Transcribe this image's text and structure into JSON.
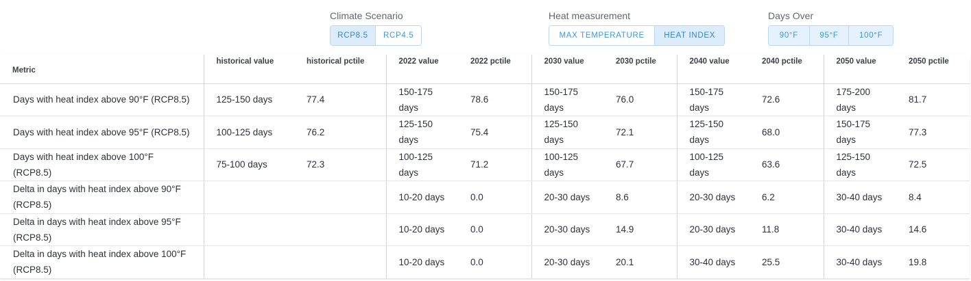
{
  "filters": {
    "climate_scenario": {
      "label": "Climate Scenario",
      "options": [
        "RCP8.5",
        "RCP4.5"
      ],
      "selected": "RCP8.5"
    },
    "heat_measurement": {
      "label": "Heat measurement",
      "options": [
        "MAX TEMPERATURE",
        "HEAT INDEX"
      ],
      "selected": "HEAT INDEX"
    },
    "days_over": {
      "label": "Days Over",
      "options": [
        "90°F",
        "95°F",
        "100°F"
      ]
    }
  },
  "table": {
    "headers": [
      "Metric",
      "historical value",
      "historical pctile",
      "2022 value",
      "2022 pctile",
      "2030 value",
      "2030 pctile",
      "2040 value",
      "2040 pctile",
      "2050 value",
      "2050 pctile"
    ],
    "rows": [
      [
        "Days with heat index above 90°F (RCP8.5)",
        "125-150 days",
        "77.4",
        "150-175 days",
        "78.6",
        "150-175 days",
        "76.0",
        "150-175 days",
        "72.6",
        "175-200 days",
        "81.7"
      ],
      [
        "Days with heat index above 95°F (RCP8.5)",
        "100-125 days",
        "76.2",
        "125-150 days",
        "75.4",
        "125-150 days",
        "72.1",
        "125-150 days",
        "68.0",
        "150-175 days",
        "77.3"
      ],
      [
        "Days with heat index above 100°F (RCP8.5)",
        "75-100 days",
        "72.3",
        "100-125 days",
        "71.2",
        "100-125 days",
        "67.7",
        "100-125 days",
        "63.6",
        "125-150 days",
        "72.5"
      ],
      [
        "Delta in days with heat index above 90°F (RCP8.5)",
        "",
        "",
        "10-20 days",
        "0.0",
        "20-30 days",
        "8.6",
        "20-30 days",
        "6.2",
        "30-40 days",
        "8.4"
      ],
      [
        "Delta in days with heat index above 95°F (RCP8.5)",
        "",
        "",
        "10-20 days",
        "0.0",
        "20-30 days",
        "14.9",
        "20-30 days",
        "11.8",
        "30-40 days",
        "14.6"
      ],
      [
        "Delta in days with heat index above 100°F (RCP8.5)",
        "",
        "",
        "10-20 days",
        "0.0",
        "20-30 days",
        "20.1",
        "30-40 days",
        "25.5",
        "30-40 days",
        "19.8"
      ]
    ]
  }
}
